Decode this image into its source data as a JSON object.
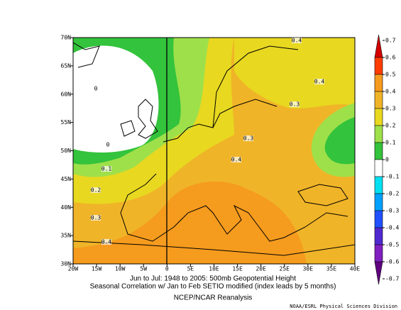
{
  "map": {
    "lon_labels": [
      "20W",
      "15W",
      "10W",
      "5W",
      "0",
      "5E",
      "10E",
      "15E",
      "20E",
      "25E",
      "30E",
      "35E",
      "40E"
    ],
    "lat_labels": [
      "30N",
      "35N",
      "40N",
      "45N",
      "50N",
      "55N",
      "60N",
      "65N",
      "70N"
    ],
    "contour_labels": [
      0.4,
      0.4,
      0.3,
      0.3,
      0.4,
      0,
      0,
      0.1,
      0.2,
      0.3,
      0.4
    ]
  },
  "colorbar": {
    "levels": [
      0.7,
      0.6,
      0.5,
      0.4,
      0.3,
      0.2,
      0.1,
      0,
      -0.1,
      -0.2,
      -0.3,
      -0.4,
      -0.5,
      -0.6,
      -0.7
    ],
    "colors": [
      "#d40000",
      "#ff3c00",
      "#f59b1e",
      "#f0b428",
      "#e8d820",
      "#9ee04a",
      "#33c33c",
      "#ffffff",
      "#00e0f0",
      "#00a0ff",
      "#2050ff",
      "#5028d0",
      "#8020c0",
      "#600080"
    ]
  },
  "caption": {
    "line1": "Jun to Jul: 1948 to 2005: 500mb Geopotential Height",
    "line2": "Seasonal Correlation w/ Jan to Feb SETIO modified (index leads by 5 months)",
    "line3": "NCEP/NCAR Reanalysis",
    "credit": "NOAA/ESRL Physical Sciences Division"
  }
}
